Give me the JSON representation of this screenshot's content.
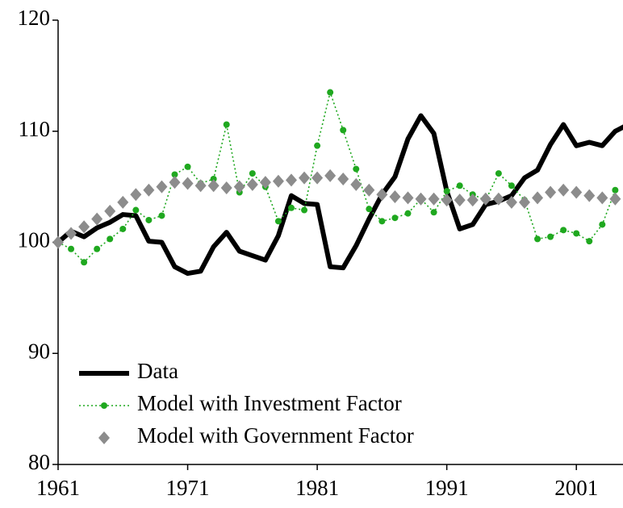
{
  "chart_data": {
    "type": "line",
    "x": [
      1961,
      1962,
      1963,
      1964,
      1965,
      1966,
      1967,
      1968,
      1969,
      1970,
      1971,
      1972,
      1973,
      1974,
      1975,
      1976,
      1977,
      1978,
      1979,
      1980,
      1981,
      1982,
      1983,
      1984,
      1985,
      1986,
      1987,
      1988,
      1989,
      1990,
      1991,
      1992,
      1993,
      1994,
      1995,
      1996,
      1997,
      1998,
      1999,
      2000,
      2001,
      2002,
      2003,
      2004,
      2005
    ],
    "series": [
      {
        "name": "Data",
        "color": "#000000",
        "line": "solid",
        "marker": "none",
        "values": [
          100,
          101,
          100.5,
          101.3,
          101.8,
          102.5,
          102.4,
          100.1,
          100,
          97.8,
          97.2,
          97.4,
          99.6,
          100.9,
          99.2,
          98.8,
          98.4,
          100.6,
          104.2,
          103.5,
          103.4,
          97.8,
          97.7,
          99.7,
          102.1,
          104.3,
          105.9,
          109.3,
          111.4,
          109.8,
          104.6,
          101.2,
          101.6,
          103.4,
          103.7,
          104.2,
          105.8,
          106.5,
          108.8,
          110.6,
          108.7,
          109,
          108.7,
          110,
          110.6
        ]
      },
      {
        "name": "Model with Investment Factor",
        "color": "#1fa81f",
        "line": "dotted",
        "marker": "circle",
        "values": [
          100,
          99.4,
          98.2,
          99.4,
          100.3,
          101.2,
          102.9,
          102,
          102.4,
          106.1,
          106.8,
          105.3,
          105.7,
          110.6,
          104.5,
          106.2,
          105,
          101.9,
          103.1,
          102.9,
          108.7,
          113.5,
          110.1,
          106.6,
          103,
          101.9,
          102.2,
          102.6,
          103.9,
          102.7,
          104.6,
          105.1,
          104.3,
          103.8,
          106.2,
          105.1,
          103.8,
          100.3,
          100.5,
          101.1,
          100.8,
          100.1,
          101.6,
          104.7,
          null
        ]
      },
      {
        "name": "Model with Government Factor",
        "color": "#8c8c8c",
        "line": "none",
        "marker": "diamond",
        "values": [
          100,
          100.8,
          101.4,
          102.1,
          102.8,
          103.6,
          104.3,
          104.7,
          105,
          105.4,
          105.3,
          105.1,
          105.1,
          104.9,
          105,
          105.2,
          105.4,
          105.5,
          105.6,
          105.8,
          105.8,
          106,
          105.7,
          105.2,
          104.7,
          104.3,
          104.1,
          104,
          103.9,
          103.9,
          103.8,
          103.8,
          103.8,
          103.9,
          103.9,
          103.6,
          103.6,
          104,
          104.5,
          104.7,
          104.5,
          104.2,
          104,
          103.9,
          null
        ]
      }
    ],
    "xlim": [
      1961,
      2004.6
    ],
    "xticks": [
      1961,
      1971,
      1981,
      1991,
      2001
    ],
    "ylim": [
      80,
      120
    ],
    "yticks": [
      80,
      90,
      100,
      110,
      120
    ],
    "grid": false,
    "legend": "lower left"
  }
}
